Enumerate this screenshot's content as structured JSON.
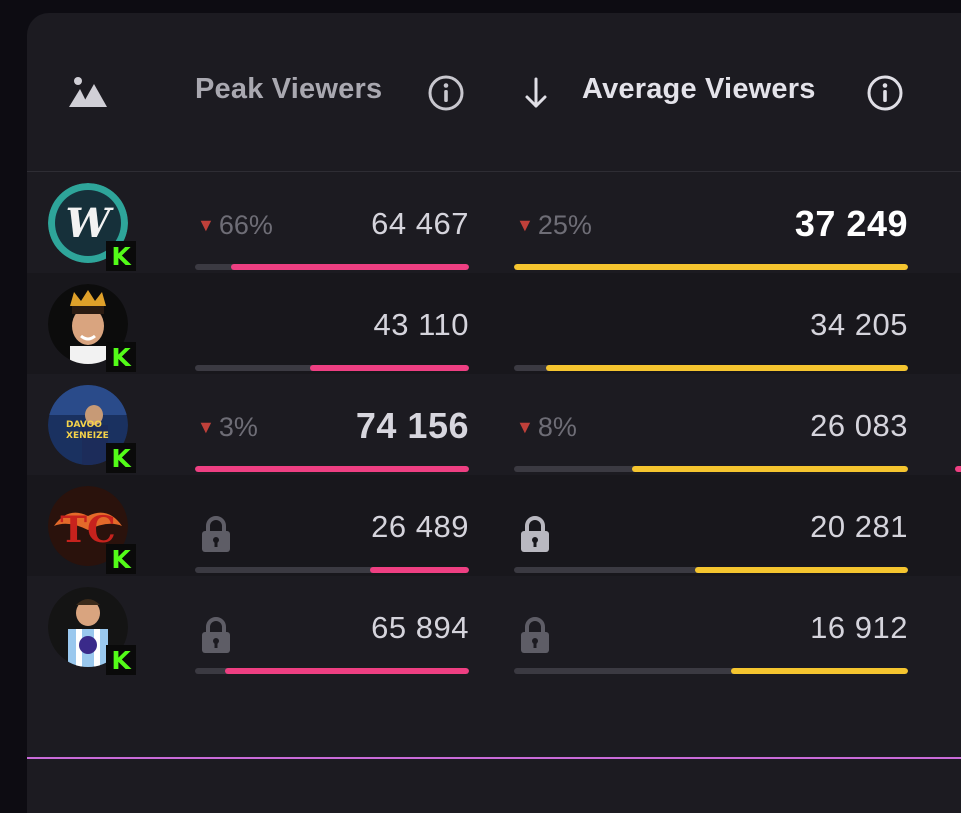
{
  "header": {
    "peak_label": "Peak Viewers",
    "average_label": "Average Viewers",
    "icons": [
      "mountain-icon",
      "info-icon",
      "sort-down-icon"
    ]
  },
  "colors": {
    "peak_bar": "#ee3f82",
    "average_bar": "#f5c52f",
    "delta_arrow": "#c0403a",
    "kick_green": "#53fc18"
  },
  "rows": [
    {
      "peak_delta": "66%",
      "peak_value": "64 467",
      "peak_fill": 0.87,
      "avg_delta": "25%",
      "avg_value": "37 249",
      "avg_fill": 1.0
    },
    {
      "peak_delta": "",
      "peak_value": "43 110",
      "peak_fill": 0.58,
      "avg_delta": "",
      "avg_value": "34 205",
      "avg_fill": 0.92
    },
    {
      "peak_delta": "3%",
      "peak_value": "74 156",
      "peak_fill": 1.0,
      "avg_delta": "8%",
      "avg_value": "26 083",
      "avg_fill": 0.7
    },
    {
      "peak_delta": "",
      "peak_value": "26 489",
      "peak_fill": 0.36,
      "avg_delta": "",
      "avg_value": "20 281",
      "avg_fill": 0.54
    },
    {
      "peak_delta": "",
      "peak_value": "65 894",
      "peak_fill": 0.89,
      "avg_delta": "",
      "avg_value": "16 912",
      "avg_fill": 0.45
    }
  ],
  "badge_letter": "K"
}
